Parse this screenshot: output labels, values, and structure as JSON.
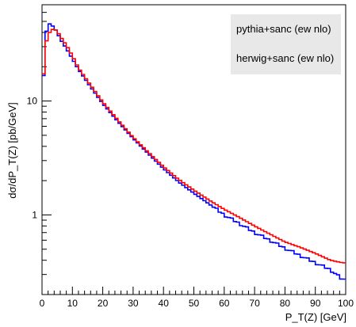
{
  "chart_data": {
    "type": "line",
    "xlabel": "P_T(Z) [GeV]",
    "ylabel": "dσ/dP_T(Z) [pb/GeV]",
    "xlim": [
      0,
      100
    ],
    "ylim": [
      0.2,
      70
    ],
    "yscale": "log",
    "grid": false,
    "legend_position": "top-right",
    "x_ticks": [
      0,
      10,
      20,
      30,
      40,
      50,
      60,
      70,
      80,
      90,
      100
    ],
    "y_ticks": [
      1,
      10
    ],
    "y_tick_labels": [
      "1",
      "10"
    ],
    "bin_width": 1,
    "series": [
      {
        "name": "pythia+sanc (ew nlo)",
        "color": "#0000ff",
        "x": [
          0,
          1,
          2,
          3,
          4,
          5,
          6,
          8,
          10,
          12,
          15,
          20,
          25,
          30,
          35,
          40,
          45,
          50,
          55,
          60,
          65,
          70,
          75,
          80,
          85,
          90,
          95,
          99
        ],
        "y": [
          8.0,
          35,
          48,
          47,
          44,
          40,
          35,
          29,
          23.5,
          19,
          14.5,
          9.5,
          6.6,
          4.7,
          3.45,
          2.55,
          1.95,
          1.55,
          1.25,
          1.0,
          0.84,
          0.7,
          0.6,
          0.51,
          0.44,
          0.38,
          0.33,
          0.27
        ]
      },
      {
        "name": "herwig+sanc (ew nlo)",
        "color": "#ff0000",
        "x": [
          0,
          1,
          2,
          3,
          4,
          5,
          6,
          8,
          10,
          12,
          15,
          20,
          25,
          30,
          35,
          40,
          45,
          50,
          55,
          60,
          65,
          70,
          75,
          80,
          85,
          90,
          95,
          99
        ],
        "y": [
          10.0,
          30,
          38,
          42,
          43,
          41,
          37,
          31,
          25,
          19.5,
          15,
          9.8,
          6.8,
          4.8,
          3.55,
          2.65,
          2.05,
          1.65,
          1.35,
          1.12,
          0.95,
          0.8,
          0.68,
          0.58,
          0.52,
          0.46,
          0.4,
          0.38
        ]
      }
    ]
  }
}
